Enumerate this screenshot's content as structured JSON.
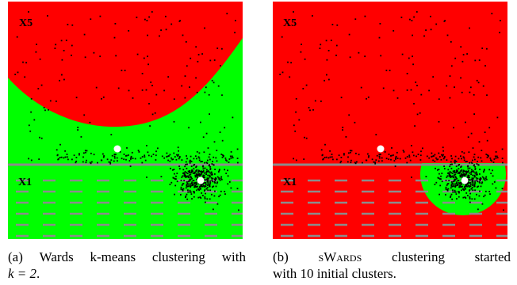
{
  "colors": {
    "cluster_red": "#ff0000",
    "cluster_green": "#00ff00",
    "points": "#000000",
    "centroid": "#ffffff",
    "grid_lines": "#8c8c8c"
  },
  "panels": [
    {
      "region_labels": {
        "top": "X5",
        "bottom": "X1"
      },
      "caption": {
        "line1_parts": [
          "(a)",
          "Wards",
          "k-means",
          "clustering",
          "with"
        ],
        "line2_math": "k = 2",
        "line2_end": "."
      }
    },
    {
      "region_labels": {
        "top": "X5",
        "bottom": "X1"
      },
      "caption": {
        "line1_prefix": "(b)",
        "line1_smallcaps": "sWards",
        "line1_rest": [
          "clustering",
          "started"
        ],
        "line2": "with 10 initial clusters."
      }
    }
  ]
}
